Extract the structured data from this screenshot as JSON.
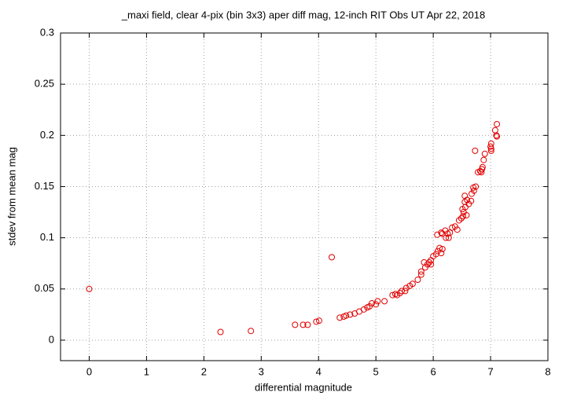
{
  "chart_data": {
    "type": "scatter",
    "title": "_maxi field, clear 4-pix (bin 3x3) aper diff mag,  12-inch RIT Obs UT Apr 22, 2018",
    "x_label": "differential magnitude",
    "y_label": "stdev from mean mag",
    "xlim": [
      -0.5,
      8
    ],
    "ylim": [
      -0.02,
      0.3
    ],
    "xticks": [
      0,
      1,
      2,
      3,
      4,
      5,
      6,
      7,
      8
    ],
    "yticks": [
      0,
      0.05,
      0.1,
      0.15,
      0.2,
      0.25,
      0.3
    ],
    "grid": true,
    "color": "#e00000",
    "x": [
      0,
      2.29,
      2.82,
      3.59,
      3.73,
      3.81,
      3.96,
      4.01,
      4.23,
      4.37,
      4.44,
      4.48,
      4.55,
      4.63,
      4.71,
      4.79,
      4.85,
      4.89,
      4.93,
      5.0,
      5.03,
      5.15,
      5.29,
      5.34,
      5.37,
      5.42,
      5.45,
      5.51,
      5.53,
      5.59,
      5.64,
      5.73,
      5.79,
      5.79,
      5.84,
      5.86,
      5.9,
      5.93,
      5.96,
      5.96,
      6.0,
      6.05,
      6.08,
      6.07,
      6.14,
      6.11,
      6.14,
      6.16,
      6.16,
      6.21,
      6.22,
      6.25,
      6.27,
      6.29,
      6.33,
      6.38,
      6.42,
      6.45,
      6.49,
      6.52,
      6.51,
      6.53,
      6.55,
      6.55,
      6.56,
      6.58,
      6.59,
      6.62,
      6.66,
      6.67,
      6.7,
      6.74,
      6.71,
      6.73,
      6.78,
      6.82,
      6.85,
      6.84,
      6.86,
      6.88,
      6.9,
      7.0,
      7.01,
      7.01,
      7.01,
      7.08,
      7.1,
      7.11,
      7.11
    ],
    "values": [
      0.05,
      0.008,
      0.009,
      0.015,
      0.015,
      0.015,
      0.018,
      0.019,
      0.081,
      0.022,
      0.023,
      0.024,
      0.025,
      0.026,
      0.028,
      0.03,
      0.032,
      0.033,
      0.036,
      0.035,
      0.038,
      0.038,
      0.044,
      0.045,
      0.044,
      0.046,
      0.048,
      0.048,
      0.051,
      0.053,
      0.055,
      0.059,
      0.064,
      0.067,
      0.076,
      0.071,
      0.074,
      0.076,
      0.074,
      0.078,
      0.082,
      0.084,
      0.087,
      0.103,
      0.105,
      0.09,
      0.085,
      0.089,
      0.104,
      0.107,
      0.1,
      0.104,
      0.1,
      0.105,
      0.11,
      0.111,
      0.108,
      0.117,
      0.119,
      0.121,
      0.128,
      0.125,
      0.135,
      0.141,
      0.13,
      0.122,
      0.137,
      0.133,
      0.136,
      0.143,
      0.149,
      0.15,
      0.146,
      0.185,
      0.164,
      0.165,
      0.167,
      0.164,
      0.169,
      0.176,
      0.182,
      0.189,
      0.187,
      0.192,
      0.185,
      0.205,
      0.2,
      0.199,
      0.211
    ]
  }
}
